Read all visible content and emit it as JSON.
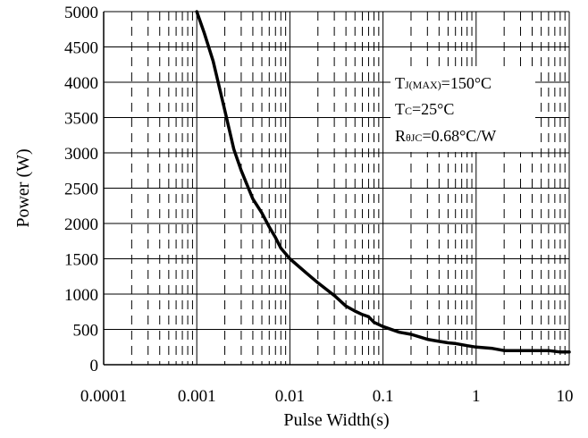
{
  "chart_data": {
    "type": "line",
    "title": "",
    "xlabel": "Pulse Width(s)",
    "ylabel": "Power (W)",
    "x_scale": "log",
    "xlim": [
      0.0001,
      10
    ],
    "ylim": [
      0,
      5000
    ],
    "x_ticks": [
      0.0001,
      0.001,
      0.01,
      0.1,
      1,
      10
    ],
    "x_tick_labels": [
      "0.0001",
      "0.001",
      "0.01",
      "0.1",
      "1",
      "10"
    ],
    "y_ticks": [
      0,
      500,
      1000,
      1500,
      2000,
      2500,
      3000,
      3500,
      4000,
      4500,
      5000
    ],
    "y_tick_labels": [
      "0",
      "500",
      "1000",
      "1500",
      "2000",
      "2500",
      "3000",
      "3500",
      "4000",
      "4500",
      "5000"
    ],
    "grid": true,
    "annotation": {
      "line1_main": "T",
      "line1_sub": "J(MAX)",
      "line1_rest": "=150°C",
      "line2_main": "T",
      "line2_sub": "C",
      "line2_rest": "=25°C",
      "line3_main": "R",
      "line3_sub": "θJC",
      "line3_rest": "=0.68°C/W"
    },
    "series": [
      {
        "color": "#000000",
        "x": [
          0.001,
          0.0012,
          0.0015,
          0.002,
          0.0025,
          0.003,
          0.004,
          0.005,
          0.006,
          0.007,
          0.008,
          0.01,
          0.015,
          0.02,
          0.03,
          0.04,
          0.05,
          0.06,
          0.07,
          0.08,
          0.1,
          0.15,
          0.2,
          0.3,
          0.4,
          0.5,
          0.6,
          0.8,
          1,
          1.5,
          2,
          3,
          4,
          5,
          6,
          8,
          10
        ],
        "y": [
          5000,
          4700,
          4300,
          3600,
          3050,
          2750,
          2350,
          2150,
          1950,
          1800,
          1650,
          1500,
          1300,
          1160,
          980,
          830,
          760,
          710,
          680,
          600,
          540,
          460,
          430,
          360,
          330,
          310,
          300,
          270,
          250,
          230,
          200,
          200,
          200,
          200,
          200,
          180,
          180
        ]
      }
    ]
  }
}
